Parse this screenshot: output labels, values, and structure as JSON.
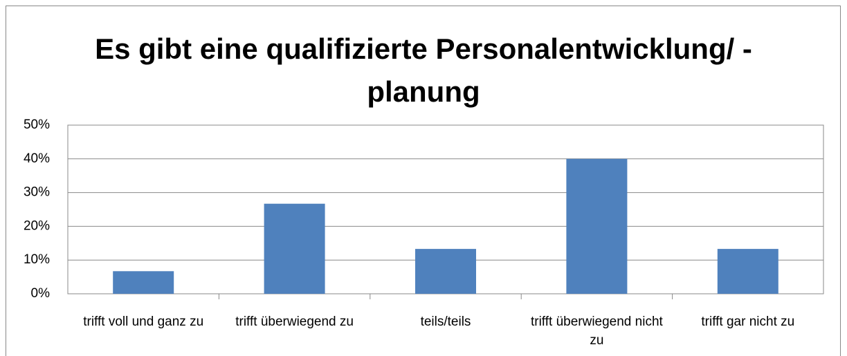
{
  "chart_data": {
    "type": "bar",
    "title": "Es gibt eine qualifizierte Personalentwicklung/ -planung",
    "categories": [
      "trifft voll und ganz zu",
      "trifft überwiegend zu",
      "teils/teils",
      "trifft überwiegend nicht zu",
      "trifft gar nicht zu"
    ],
    "values": [
      6.7,
      26.7,
      13.3,
      40,
      13.3
    ],
    "color": "#4f81bd",
    "ylim": [
      0,
      50
    ],
    "yticks": [
      {
        "value": 0,
        "label": "0%"
      },
      {
        "value": 10,
        "label": "10%"
      },
      {
        "value": 20,
        "label": "20%"
      },
      {
        "value": 30,
        "label": "30%"
      },
      {
        "value": 40,
        "label": "40%"
      },
      {
        "value": 50,
        "label": "50%"
      }
    ],
    "grid": true
  }
}
